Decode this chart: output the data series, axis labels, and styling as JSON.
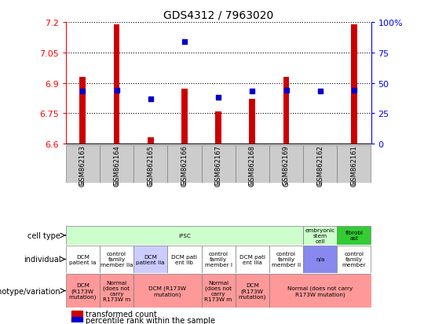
{
  "title": "GDS4312 / 7963020",
  "samples": [
    "GSM862163",
    "GSM862164",
    "GSM862165",
    "GSM862166",
    "GSM862167",
    "GSM862168",
    "GSM862169",
    "GSM862162",
    "GSM862161"
  ],
  "transformed_counts": [
    6.93,
    7.19,
    6.63,
    6.87,
    6.76,
    6.82,
    6.93,
    6.6,
    7.19
  ],
  "percentile_ranks_pct": [
    43,
    44,
    37,
    84,
    38,
    43,
    44,
    43,
    44
  ],
  "ymin": 6.6,
  "ymax": 7.2,
  "yticks": [
    6.6,
    6.75,
    6.9,
    7.05,
    7.2
  ],
  "y2ticks_pct": [
    0,
    25,
    50,
    75,
    100
  ],
  "bar_color": "#cc0000",
  "dot_color": "#0000cc",
  "cell_types": [
    {
      "label": "iPSC",
      "span": [
        0,
        7
      ],
      "color": "#ccffcc"
    },
    {
      "label": "embryonic\nstem\ncell",
      "span": [
        7,
        8
      ],
      "color": "#ccffcc"
    },
    {
      "label": "fibrobl\nast",
      "span": [
        8,
        9
      ],
      "color": "#33cc33"
    }
  ],
  "individuals": [
    {
      "label": "DCM\npatient Ia",
      "span": [
        0,
        1
      ],
      "color": "#ffffff"
    },
    {
      "label": "control\nfamily\nmember IIa",
      "span": [
        1,
        2
      ],
      "color": "#ffffff"
    },
    {
      "label": "DCM\npatient IIa",
      "span": [
        2,
        3
      ],
      "color": "#ccccff"
    },
    {
      "label": "DCM pati\nent IIb",
      "span": [
        3,
        4
      ],
      "color": "#ffffff"
    },
    {
      "label": "control\nfamily\nmember I",
      "span": [
        4,
        5
      ],
      "color": "#ffffff"
    },
    {
      "label": "DCM pati\nent IIIa",
      "span": [
        5,
        6
      ],
      "color": "#ffffff"
    },
    {
      "label": "control\nfamily\nmember II",
      "span": [
        6,
        7
      ],
      "color": "#ffffff"
    },
    {
      "label": "n/a",
      "span": [
        7,
        8
      ],
      "color": "#8888ee"
    },
    {
      "label": "control\nfamily\nmember",
      "span": [
        8,
        9
      ],
      "color": "#ffffff"
    }
  ],
  "genotypes": [
    {
      "label": "DCM\n(R173W\nmutation)",
      "span": [
        0,
        1
      ],
      "color": "#ff9999"
    },
    {
      "label": "Normal\n(does not\ncarry\nR173W m",
      "span": [
        1,
        2
      ],
      "color": "#ff9999"
    },
    {
      "label": "DCM (R173W\nmutation)",
      "span": [
        2,
        4
      ],
      "color": "#ff9999"
    },
    {
      "label": "Normal\n(does not\ncarry\nR173W m",
      "span": [
        4,
        5
      ],
      "color": "#ff9999"
    },
    {
      "label": "DCM\n(R173W\nmutation)",
      "span": [
        5,
        6
      ],
      "color": "#ff9999"
    },
    {
      "label": "Normal (does not carry\nR173W mutation)",
      "span": [
        6,
        9
      ],
      "color": "#ff9999"
    }
  ]
}
